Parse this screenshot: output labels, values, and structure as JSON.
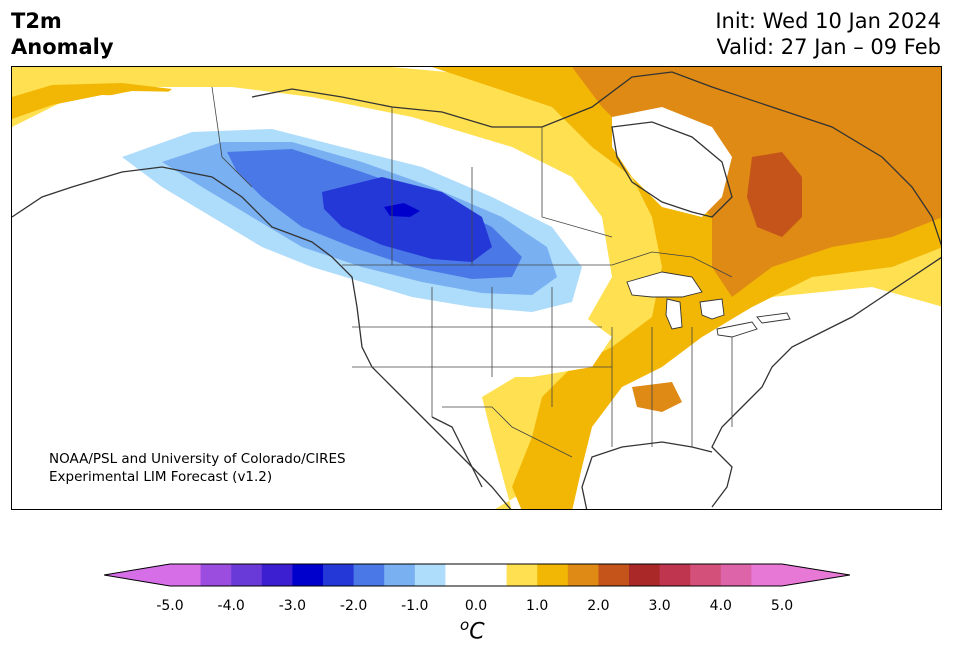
{
  "header": {
    "title_line1": "T2m",
    "title_line2": "Anomaly",
    "init_label": "Init: Wed 10 Jan 2024",
    "valid_label": "Valid: 27 Jan – 09 Feb"
  },
  "map": {
    "credit_line1": "NOAA/PSL and University of Colorado/CIRES",
    "credit_line2": "Experimental LIM Forecast (v1.2)",
    "region": "North America"
  },
  "colorbar": {
    "ticks": [
      "-5.0",
      "-4.0",
      "-3.0",
      "-2.0",
      "-1.0",
      "0.0",
      "1.0",
      "2.0",
      "3.0",
      "4.0",
      "5.0"
    ],
    "unit_symbol": "o",
    "unit_letter": "C",
    "bin_colors": [
      "#d66ee8",
      "#9b4de0",
      "#6a3ad9",
      "#3b1fd1",
      "#0000cc",
      "#2438d8",
      "#4a78e6",
      "#78b0f2",
      "#aedcfb",
      "#ffffff",
      "#ffffff",
      "#ffe050",
      "#f2b705",
      "#de8a14",
      "#c4541a",
      "#aa2828",
      "#bf3550",
      "#d2507a",
      "#de64aa",
      "#e878d6"
    ],
    "extend_low_color": "#d66ee8",
    "extend_high_color": "#e878d6"
  },
  "anomaly_colors": {
    "cold_1": "#aedcfb",
    "cold_2": "#78b0f2",
    "cold_3": "#4a78e6",
    "cold_4": "#2438d8",
    "cold_5": "#0000cc",
    "warm_1": "#ffe050",
    "warm_2": "#f2b705",
    "warm_3": "#de8a14",
    "warm_4": "#c4541a"
  }
}
